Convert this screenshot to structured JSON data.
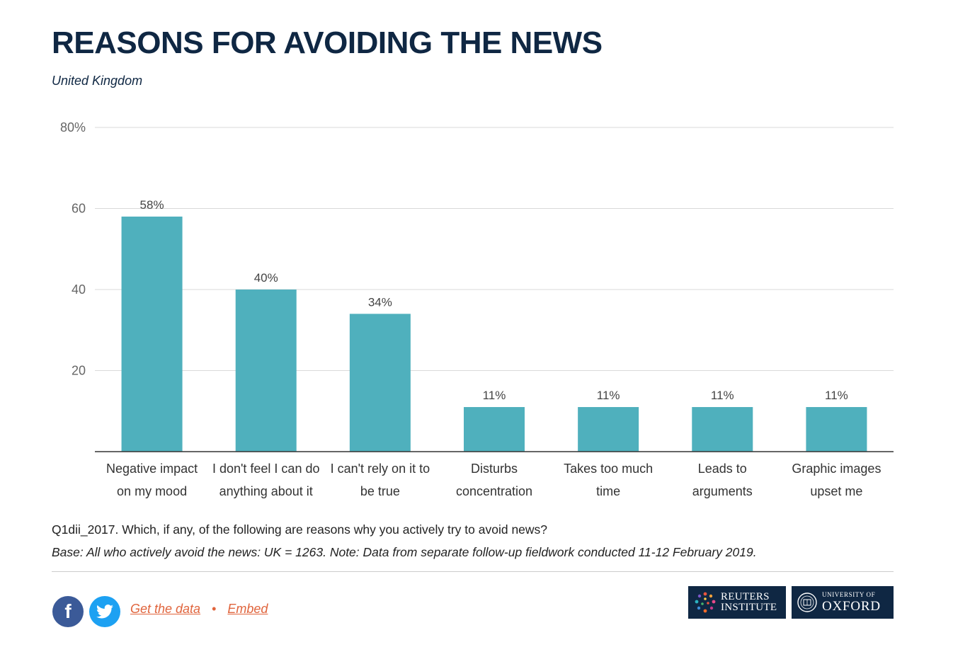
{
  "header": {
    "title": "REASONS FOR AVOIDING THE NEWS",
    "subtitle": "United Kingdom"
  },
  "chart_data": {
    "type": "bar",
    "title": "REASONS FOR AVOIDING THE NEWS",
    "subtitle": "United Kingdom",
    "categories": [
      [
        "Negative impact",
        "on my mood"
      ],
      [
        "I don't feel I can do",
        "anything about it"
      ],
      [
        "I can't rely on it to",
        "be true"
      ],
      [
        "Disturbs",
        "concentration"
      ],
      [
        "Takes too much",
        "time"
      ],
      [
        "Leads to",
        "arguments"
      ],
      [
        "Graphic images",
        "upset me"
      ]
    ],
    "values": [
      58,
      40,
      34,
      11,
      11,
      11,
      11
    ],
    "data_labels": [
      "58%",
      "40%",
      "34%",
      "11%",
      "11%",
      "11%",
      "11%"
    ],
    "yticks": [
      20,
      40,
      60,
      80
    ],
    "ytick_labels": [
      "20",
      "40",
      "60",
      "80%"
    ],
    "ylim": [
      0,
      80
    ],
    "xlabel": "",
    "ylabel": "",
    "grid": true,
    "bar_color": "#4fb0bd"
  },
  "notes": {
    "question": "Q1dii_2017. Which, if any, of the following are reasons why you actively try to avoid news?",
    "base": "Base: All who actively avoid the news: UK = 1263. Note: Data from separate follow-up fieldwork conducted 11-12 February 2019."
  },
  "footer": {
    "facebook_icon": "facebook-icon",
    "twitter_icon": "twitter-icon",
    "get_data_label": "Get the data",
    "separator": "•",
    "embed_label": "Embed",
    "reuters_logo_lines": [
      "REUTERS",
      "INSTITUTE"
    ],
    "oxford_logo_small": "UNIVERSITY OF",
    "oxford_logo_big": "OXFORD"
  }
}
